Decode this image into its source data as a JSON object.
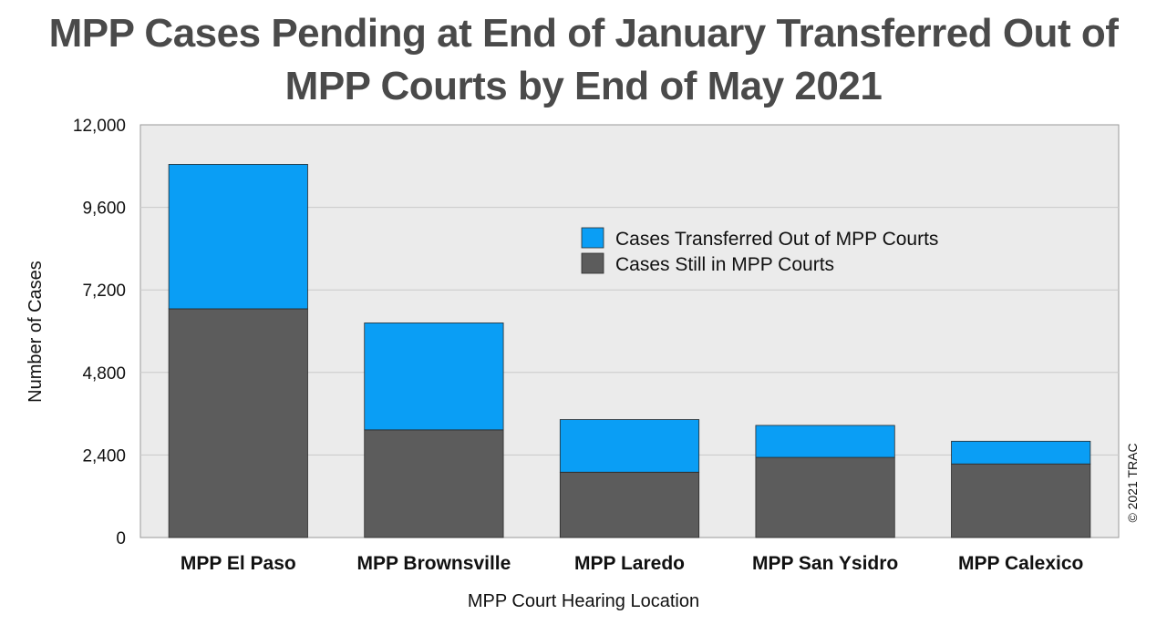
{
  "chart_data": {
    "type": "bar",
    "stacked": true,
    "title": [
      "MPP Cases Pending at End of January Transferred Out of",
      "MPP Courts by End of May 2021"
    ],
    "xlabel": "MPP Court Hearing Location",
    "ylabel": "Number of Cases",
    "ylim": [
      0,
      12000
    ],
    "yticks": [
      0,
      2400,
      4800,
      7200,
      9600,
      12000
    ],
    "ytick_labels": [
      "0",
      "2,400",
      "4,800",
      "7,200",
      "9,600",
      "12,000"
    ],
    "categories": [
      "MPP El Paso",
      "MPP Brownsville",
      "MPP Laredo",
      "MPP San Ysidro",
      "MPP Calexico"
    ],
    "series": [
      {
        "name": "Cases Still in MPP Courts",
        "color": "#5c5c5c",
        "values": [
          6650,
          3130,
          1900,
          2330,
          2140
        ]
      },
      {
        "name": "Cases Transferred Out of MPP Courts",
        "color": "#0a9ef5",
        "values": [
          4200,
          3110,
          1530,
          930,
          660
        ]
      }
    ],
    "grid": true,
    "plot_background": "#ebebeb",
    "legend": {
      "position": "upper-right",
      "order": [
        "Cases Transferred Out of MPP Courts",
        "Cases Still in MPP Courts"
      ]
    },
    "credit": "© 2021 TRAC"
  }
}
